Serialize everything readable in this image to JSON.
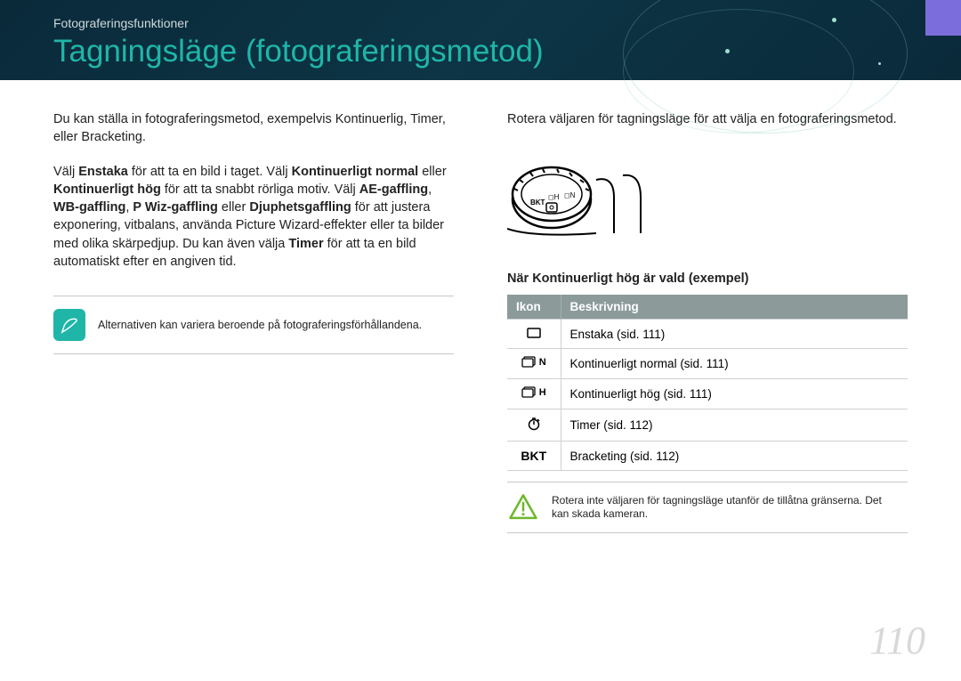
{
  "header": {
    "section_label": "Fotograferingsfunktioner",
    "title": "Tagningsläge (fotograferingsmetod)"
  },
  "left": {
    "intro": "Du kan ställa in fotograferingsmetod, exempelvis Kontinuerlig, Timer, eller Bracketing.",
    "para_parts": {
      "p1": "Välj ",
      "b1": "Enstaka",
      "p2": " för att ta en bild i taget. Välj ",
      "b2": "Kontinuerligt normal",
      "p3": " eller ",
      "b3": "Kontinuerligt hög",
      "p4": " för att ta snabbt rörliga motiv. Välj ",
      "b4": "AE-gaffling",
      "p5": ", ",
      "b5": "WB-gaffling",
      "p6": ", ",
      "b6": "P Wiz-gaffling",
      "p7": " eller ",
      "b7": "Djuphetsgaffling",
      "p8": " för att justera exponering, vitbalans, använda Picture Wizard-effekter eller ta bilder med olika skärpedjup. Du kan även välja ",
      "b8": "Timer",
      "p9": " för att ta en bild automatiskt efter en angiven tid."
    },
    "note": "Alternativen kan variera beroende på fotograferingsförhållandena."
  },
  "right": {
    "intro": "Rotera väljaren för tagningsläge för att välja en fotograferingsmetod.",
    "subheading": "När Kontinuerligt hög är vald (exempel)",
    "table": {
      "columns": [
        "Ikon",
        "Beskrivning"
      ],
      "rows": [
        {
          "icon_svg": "single",
          "icon_label": "",
          "desc": "Enstaka (sid. 111)"
        },
        {
          "icon_svg": "cont",
          "icon_label": "N",
          "desc": "Kontinuerligt normal (sid. 111)"
        },
        {
          "icon_svg": "cont",
          "icon_label": "H",
          "desc": "Kontinuerligt hög (sid. 111)"
        },
        {
          "icon_svg": "timer",
          "icon_label": "",
          "desc": "Timer (sid. 112)"
        },
        {
          "icon_svg": "text",
          "icon_label": "BKT",
          "desc": "Bracketing (sid. 112)"
        }
      ]
    },
    "caution": "Rotera inte väljaren för tagningsläge utanför de tillåtna gränserna. Det kan skada kameran."
  },
  "page_number": "110",
  "colors": {
    "accent": "#1fb6a8",
    "header_bg": "#0d3545",
    "table_header": "#8c9a9a"
  }
}
